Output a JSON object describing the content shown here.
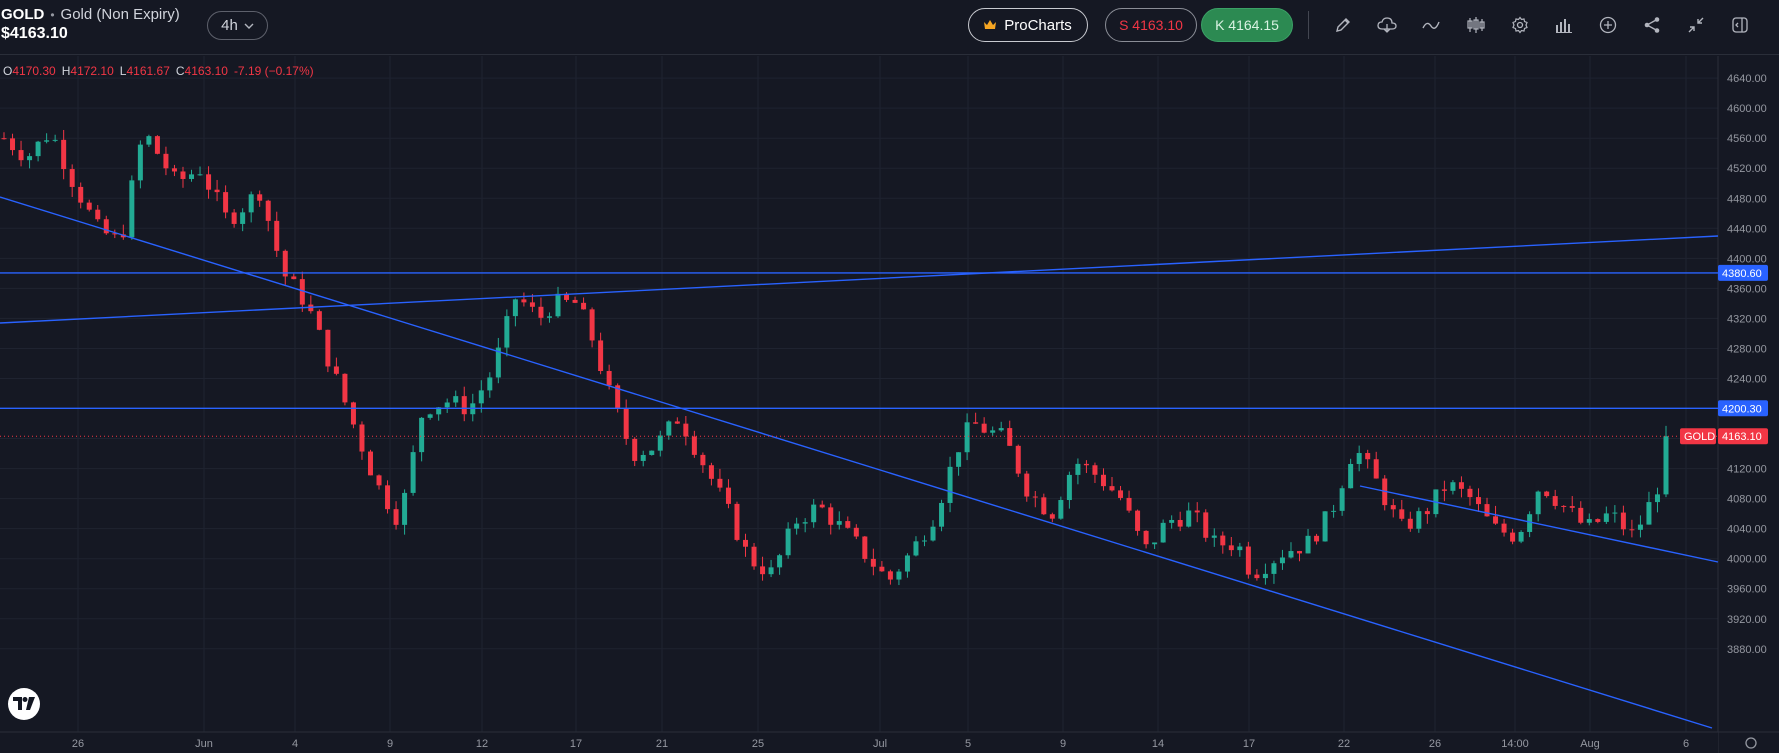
{
  "header": {
    "symbol": "GOLD",
    "separator": "•",
    "description": "Gold (Non Expiry)",
    "price": "$4163.10",
    "interval": "4h",
    "procharts_label": "ProCharts",
    "sell_label": "S 4163.10",
    "buy_label": "K 4164.15",
    "toolbar_icons": [
      "pencil-icon",
      "cloud-icon",
      "indicator-icon",
      "candles-icon",
      "settings-icon",
      "bar-chart-icon",
      "add-icon",
      "share-icon",
      "collapse-icon",
      "panel-icon"
    ]
  },
  "ohlc": {
    "o_label": "O",
    "o": "4170.30",
    "h_label": "H",
    "h": "4172.10",
    "l_label": "L",
    "l": "4161.67",
    "c_label": "C",
    "c": "4163.10",
    "change": "-7.19 (−0.17%)"
  },
  "colors": {
    "background": "#151823",
    "up": "#22ab94",
    "down": "#f23645",
    "line": "#2962ff",
    "grid": "#1f2330"
  },
  "chart_data": {
    "type": "candlestick",
    "y_ticks": [
      "4640.00",
      "4600.00",
      "4560.00",
      "4520.00",
      "4480.00",
      "4440.00",
      "4400.00",
      "4360.00",
      "4320.00",
      "4280.00",
      "4240.00",
      "4200.00",
      "4160.00",
      "4120.00",
      "4080.00",
      "4040.00",
      "4000.00",
      "3960.00",
      "3920.00",
      "3880.00"
    ],
    "x_ticks": [
      "26",
      "Jun",
      "4",
      "9",
      "12",
      "17",
      "21",
      "25",
      "Jul",
      "5",
      "9",
      "14",
      "17",
      "22",
      "26",
      "14:00",
      "Aug",
      "6"
    ],
    "ylim": [
      3876,
      4662
    ],
    "candles_count": 196,
    "candle_anchors": [
      [
        0,
        4560
      ],
      [
        5,
        4535
      ],
      [
        10,
        4570
      ],
      [
        15,
        4500
      ],
      [
        20,
        4440
      ],
      [
        25,
        4420
      ],
      [
        30,
        4570
      ],
      [
        37,
        4500
      ],
      [
        42,
        4520
      ],
      [
        48,
        4450
      ],
      [
        55,
        4490
      ],
      [
        60,
        4380
      ],
      [
        65,
        4340
      ],
      [
        75,
        4180
      ],
      [
        80,
        4100
      ],
      [
        85,
        4050
      ],
      [
        90,
        4200
      ],
      [
        95,
        4210
      ],
      [
        100,
        4200
      ],
      [
        105,
        4250
      ],
      [
        110,
        4350
      ],
      [
        115,
        4320
      ],
      [
        118,
        4340
      ],
      [
        123,
        4340
      ],
      [
        126,
        4300
      ],
      [
        130,
        4220
      ],
      [
        135,
        4140
      ],
      [
        140,
        4150
      ],
      [
        145,
        4190
      ],
      [
        150,
        4130
      ],
      [
        155,
        4070
      ],
      [
        160,
        4000
      ],
      [
        165,
        3980
      ],
      [
        170,
        4050
      ],
      [
        175,
        4070
      ],
      [
        180,
        4040
      ],
      [
        183,
        4020
      ],
      [
        190,
        3970
      ],
      [
        195,
        4010
      ],
      [
        200,
        4060
      ],
      [
        205,
        4150
      ],
      [
        208,
        4180
      ],
      [
        215,
        4160
      ],
      [
        220,
        4090
      ],
      [
        225,
        4060
      ],
      [
        230,
        4130
      ],
      [
        235,
        4110
      ],
      [
        240,
        4080
      ],
      [
        245,
        4010
      ],
      [
        250,
        4050
      ],
      [
        255,
        4060
      ],
      [
        260,
        4020
      ],
      [
        265,
        4020
      ],
      [
        268,
        3980
      ],
      [
        275,
        4010
      ],
      [
        280,
        4020
      ],
      [
        285,
        4060
      ],
      [
        290,
        4150
      ],
      [
        295,
        4100
      ],
      [
        300,
        4040
      ],
      [
        305,
        4060
      ],
      [
        310,
        4100
      ],
      [
        315,
        4080
      ],
      [
        320,
        4040
      ],
      [
        325,
        4030
      ],
      [
        330,
        4100
      ],
      [
        335,
        4070
      ],
      [
        340,
        4040
      ],
      [
        345,
        4060
      ],
      [
        350,
        4030
      ],
      [
        355,
        4090
      ],
      [
        357,
        4163
      ]
    ],
    "price_lines": [
      {
        "label": "4380.60",
        "value": 4380.6
      },
      {
        "label": "4200.30",
        "value": 4200.3
      }
    ],
    "current_price": {
      "name": "GOLD",
      "label": "4163.10",
      "value": 4163.1
    }
  }
}
